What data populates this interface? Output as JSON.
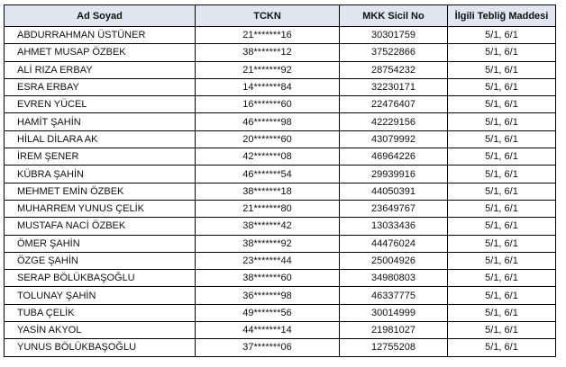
{
  "table": {
    "headers": [
      "Ad Soyad",
      "TCKN",
      "MKK Sicil No",
      "İlgili Tebliğ Maddesi"
    ],
    "rows": [
      [
        "ABDURRAHMAN ÜSTÜNER",
        "21*******16",
        "30301759",
        "5/1, 6/1"
      ],
      [
        "AHMET MUSAP ÖZBEK",
        "38*******12",
        "37522866",
        "5/1, 6/1"
      ],
      [
        "ALİ RIZA ERBAY",
        "21*******92",
        "28754232",
        "5/1, 6/1"
      ],
      [
        "ESRA ERBAY",
        "14*******84",
        "32230171",
        "5/1, 6/1"
      ],
      [
        "EVREN YÜCEL",
        "16*******60",
        "22476407",
        "5/1, 6/1"
      ],
      [
        "HAMİT ŞAHİN",
        "46*******98",
        "42229156",
        "5/1, 6/1"
      ],
      [
        "HİLAL DİLARA AK",
        "20*******60",
        "43079992",
        "5/1, 6/1"
      ],
      [
        "İREM ŞENER",
        "42*******08",
        "46964226",
        "5/1, 6/1"
      ],
      [
        "KÜBRA ŞAHİN",
        "46*******54",
        "29939916",
        "5/1, 6/1"
      ],
      [
        "MEHMET EMİN ÖZBEK",
        "38*******18",
        "44050391",
        "5/1, 6/1"
      ],
      [
        "MUHARREM YUNUS ÇELİK",
        "21*******80",
        "23649767",
        "5/1, 6/1"
      ],
      [
        "MUSTAFA NACİ ÖZBEK",
        "38*******42",
        "13033436",
        "5/1, 6/1"
      ],
      [
        "ÖMER ŞAHİN",
        "38*******92",
        "44476024",
        "5/1, 6/1"
      ],
      [
        "ÖZGE ŞAHİN",
        "23*******44",
        "25004926",
        "5/1, 6/1"
      ],
      [
        "SERAP BÖLÜKBAŞOĞLU",
        "38*******60",
        "34980803",
        "5/1, 6/1"
      ],
      [
        "TOLUNAY ŞAHİN",
        "36*******98",
        "46337775",
        "5/1, 6/1"
      ],
      [
        "TUBA ÇELİK",
        "49*******56",
        "30014999",
        "5/1, 6/1"
      ],
      [
        "YASİN AKYOL",
        "44*******14",
        "21981027",
        "5/1, 6/1"
      ],
      [
        "YUNUS BÖLÜKBAŞOĞLU",
        "37*******06",
        "12755208",
        "5/1, 6/1"
      ]
    ]
  },
  "colors": {
    "header_bg": "#dfe6f0",
    "border": "#000000"
  }
}
